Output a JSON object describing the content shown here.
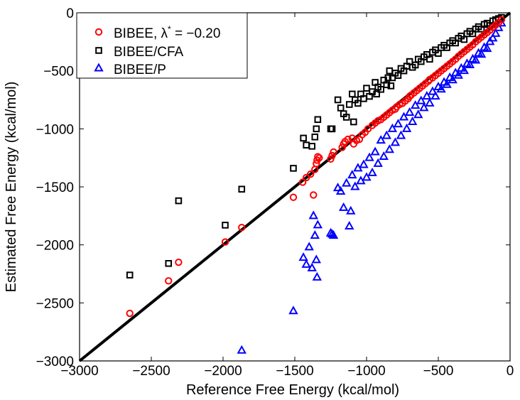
{
  "chart_data": {
    "type": "scatter",
    "title": "",
    "xlabel": "Reference Free Energy (kcal/mol)",
    "ylabel": "Estimated Free Energy (kcal/mol)",
    "xlim": [
      -3000,
      0
    ],
    "ylim": [
      -3000,
      0
    ],
    "xticks": [
      -3000,
      -2500,
      -2000,
      -1500,
      -1000,
      -500,
      0
    ],
    "yticks": [
      -3000,
      -2500,
      -2000,
      -1500,
      -1000,
      -500,
      0
    ],
    "xtick_labels": [
      "−3000",
      "−2500",
      "−2000",
      "−1500",
      "−1000",
      "−500",
      "0"
    ],
    "ytick_labels": [
      "−3000",
      "−2500",
      "−2000",
      "−1500",
      "−1000",
      "−500",
      "0"
    ],
    "grid": false,
    "legend_position": "top-left",
    "reference_line": {
      "name": "y = x",
      "x": [
        -3000,
        0
      ],
      "y": [
        -3000,
        0
      ],
      "color": "#000000"
    },
    "series": [
      {
        "name": "BIBEE, λ* = −0.20",
        "legend_main": "BIBEE, λ",
        "legend_sup": "*",
        "legend_tail": " = −0.20",
        "marker": "circle",
        "color": "#ff0000",
        "points": [
          [
            -2650,
            -2590
          ],
          [
            -2380,
            -2310
          ],
          [
            -2310,
            -2150
          ],
          [
            -1985,
            -1975
          ],
          [
            -1870,
            -1850
          ],
          [
            -1510,
            -1590
          ],
          [
            -1445,
            -1460
          ],
          [
            -1420,
            -1420
          ],
          [
            -1390,
            -1390
          ],
          [
            -1370,
            -1570
          ],
          [
            -1360,
            -1350
          ],
          [
            -1350,
            -1300
          ],
          [
            -1345,
            -1270
          ],
          [
            -1340,
            -1240
          ],
          [
            -1330,
            -1250
          ],
          [
            -1250,
            -1260
          ],
          [
            -1240,
            -1230
          ],
          [
            -1230,
            -1200
          ],
          [
            -1170,
            -1160
          ],
          [
            -1160,
            -1130
          ],
          [
            -1150,
            -1110
          ],
          [
            -1130,
            -1090
          ],
          [
            -1100,
            -1080
          ],
          [
            -1090,
            -1130
          ],
          [
            -1070,
            -1100
          ],
          [
            -1050,
            -1090
          ],
          [
            -1030,
            -1050
          ],
          [
            -1010,
            -1030
          ],
          [
            -990,
            -1000
          ],
          [
            -960,
            -970
          ],
          [
            -940,
            -950
          ],
          [
            -920,
            -930
          ],
          [
            -900,
            -920
          ],
          [
            -880,
            -900
          ],
          [
            -860,
            -880
          ],
          [
            -840,
            -860
          ],
          [
            -820,
            -840
          ],
          [
            -800,
            -830
          ],
          [
            -790,
            -810
          ],
          [
            -770,
            -790
          ],
          [
            -750,
            -780
          ],
          [
            -730,
            -760
          ],
          [
            -710,
            -740
          ],
          [
            -700,
            -720
          ],
          [
            -690,
            -710
          ],
          [
            -670,
            -690
          ],
          [
            -650,
            -670
          ],
          [
            -630,
            -650
          ],
          [
            -610,
            -630
          ],
          [
            -590,
            -610
          ],
          [
            -570,
            -590
          ],
          [
            -560,
            -575
          ],
          [
            -540,
            -560
          ],
          [
            -520,
            -540
          ],
          [
            -500,
            -520
          ],
          [
            -480,
            -500
          ],
          [
            -460,
            -480
          ],
          [
            -440,
            -460
          ],
          [
            -420,
            -440
          ],
          [
            -400,
            -420
          ],
          [
            -380,
            -400
          ],
          [
            -360,
            -375
          ],
          [
            -340,
            -355
          ],
          [
            -320,
            -335
          ],
          [
            -300,
            -315
          ],
          [
            -280,
            -295
          ],
          [
            -260,
            -275
          ],
          [
            -240,
            -250
          ],
          [
            -220,
            -230
          ],
          [
            -200,
            -210
          ],
          [
            -180,
            -190
          ],
          [
            -160,
            -170
          ],
          [
            -140,
            -150
          ],
          [
            -120,
            -125
          ],
          [
            -100,
            -105
          ],
          [
            -80,
            -85
          ],
          [
            -60,
            -60
          ]
        ]
      },
      {
        "name": "BIBEE/CFA",
        "legend_main": "BIBEE/CFA",
        "legend_sup": "",
        "legend_tail": "",
        "marker": "square",
        "color": "#000000",
        "points": [
          [
            -2650,
            -2260
          ],
          [
            -2380,
            -2160
          ],
          [
            -2310,
            -1620
          ],
          [
            -1985,
            -1830
          ],
          [
            -1870,
            -1520
          ],
          [
            -1510,
            -1340
          ],
          [
            -1440,
            -1080
          ],
          [
            -1420,
            -1140
          ],
          [
            -1380,
            -1150
          ],
          [
            -1360,
            -1070
          ],
          [
            -1350,
            -1000
          ],
          [
            -1340,
            -920
          ],
          [
            -1250,
            -1000
          ],
          [
            -1240,
            -1000
          ],
          [
            -1200,
            -750
          ],
          [
            -1180,
            -820
          ],
          [
            -1160,
            -870
          ],
          [
            -1140,
            -900
          ],
          [
            -1120,
            -790
          ],
          [
            -1100,
            -700
          ],
          [
            -1090,
            -940
          ],
          [
            -1080,
            -750
          ],
          [
            -1060,
            -780
          ],
          [
            -1040,
            -700
          ],
          [
            -1020,
            -740
          ],
          [
            -1000,
            -650
          ],
          [
            -980,
            -720
          ],
          [
            -960,
            -680
          ],
          [
            -940,
            -600
          ],
          [
            -930,
            -700
          ],
          [
            -920,
            -640
          ],
          [
            -900,
            -660
          ],
          [
            -880,
            -580
          ],
          [
            -860,
            -620
          ],
          [
            -850,
            -560
          ],
          [
            -840,
            -500
          ],
          [
            -830,
            -630
          ],
          [
            -820,
            -560
          ],
          [
            -800,
            -520
          ],
          [
            -780,
            -540
          ],
          [
            -760,
            -480
          ],
          [
            -740,
            -500
          ],
          [
            -720,
            -460
          ],
          [
            -700,
            -420
          ],
          [
            -680,
            -470
          ],
          [
            -660,
            -450
          ],
          [
            -640,
            -400
          ],
          [
            -620,
            -420
          ],
          [
            -600,
            -380
          ],
          [
            -580,
            -360
          ],
          [
            -560,
            -400
          ],
          [
            -540,
            -340
          ],
          [
            -520,
            -320
          ],
          [
            -500,
            -350
          ],
          [
            -480,
            -300
          ],
          [
            -460,
            -280
          ],
          [
            -440,
            -300
          ],
          [
            -420,
            -260
          ],
          [
            -400,
            -240
          ],
          [
            -380,
            -260
          ],
          [
            -360,
            -220
          ],
          [
            -340,
            -200
          ],
          [
            -320,
            -230
          ],
          [
            -300,
            -180
          ],
          [
            -280,
            -160
          ],
          [
            -260,
            -180
          ],
          [
            -240,
            -140
          ],
          [
            -220,
            -120
          ],
          [
            -200,
            -140
          ],
          [
            -180,
            -100
          ],
          [
            -160,
            -90
          ],
          [
            -140,
            -110
          ],
          [
            -120,
            -70
          ],
          [
            -100,
            -60
          ],
          [
            -80,
            -50
          ],
          [
            -60,
            -40
          ]
        ]
      },
      {
        "name": "BIBEE/P",
        "legend_main": "BIBEE/P",
        "legend_sup": "",
        "legend_tail": "",
        "marker": "triangle",
        "color": "#0000ff",
        "points": [
          [
            -1870,
            -2910
          ],
          [
            -1510,
            -2570
          ],
          [
            -1440,
            -2110
          ],
          [
            -1420,
            -2170
          ],
          [
            -1400,
            -2020
          ],
          [
            -1380,
            -2200
          ],
          [
            -1370,
            -1750
          ],
          [
            -1360,
            -1920
          ],
          [
            -1350,
            -2130
          ],
          [
            -1345,
            -2280
          ],
          [
            -1340,
            -1830
          ],
          [
            -1250,
            -1900
          ],
          [
            -1240,
            -1910
          ],
          [
            -1230,
            -1920
          ],
          [
            -1200,
            -1510
          ],
          [
            -1180,
            -1540
          ],
          [
            -1160,
            -1680
          ],
          [
            -1140,
            -1470
          ],
          [
            -1120,
            -1840
          ],
          [
            -1110,
            -1710
          ],
          [
            -1100,
            -1400
          ],
          [
            -1080,
            -1500
          ],
          [
            -1060,
            -1340
          ],
          [
            -1040,
            -1450
          ],
          [
            -1020,
            -1310
          ],
          [
            -1000,
            -1420
          ],
          [
            -980,
            -1250
          ],
          [
            -960,
            -1380
          ],
          [
            -940,
            -1200
          ],
          [
            -920,
            -1300
          ],
          [
            -900,
            -1100
          ],
          [
            -880,
            -1240
          ],
          [
            -860,
            -1060
          ],
          [
            -840,
            -1180
          ],
          [
            -820,
            -1000
          ],
          [
            -800,
            -1120
          ],
          [
            -780,
            -960
          ],
          [
            -760,
            -1060
          ],
          [
            -740,
            -900
          ],
          [
            -720,
            -1000
          ],
          [
            -700,
            -860
          ],
          [
            -680,
            -940
          ],
          [
            -660,
            -800
          ],
          [
            -640,
            -880
          ],
          [
            -620,
            -760
          ],
          [
            -600,
            -820
          ],
          [
            -580,
            -720
          ],
          [
            -560,
            -780
          ],
          [
            -540,
            -680
          ],
          [
            -520,
            -720
          ],
          [
            -500,
            -640
          ],
          [
            -480,
            -660
          ],
          [
            -460,
            -600
          ],
          [
            -440,
            -620
          ],
          [
            -420,
            -560
          ],
          [
            -400,
            -580
          ],
          [
            -380,
            -520
          ],
          [
            -360,
            -540
          ],
          [
            -340,
            -480
          ],
          [
            -320,
            -500
          ],
          [
            -300,
            -440
          ],
          [
            -280,
            -450
          ],
          [
            -260,
            -400
          ],
          [
            -240,
            -410
          ],
          [
            -220,
            -350
          ],
          [
            -200,
            -360
          ],
          [
            -180,
            -300
          ],
          [
            -160,
            -310
          ],
          [
            -140,
            -250
          ],
          [
            -120,
            -220
          ],
          [
            -100,
            -180
          ],
          [
            -80,
            -130
          ],
          [
            -60,
            -90
          ]
        ]
      }
    ]
  }
}
